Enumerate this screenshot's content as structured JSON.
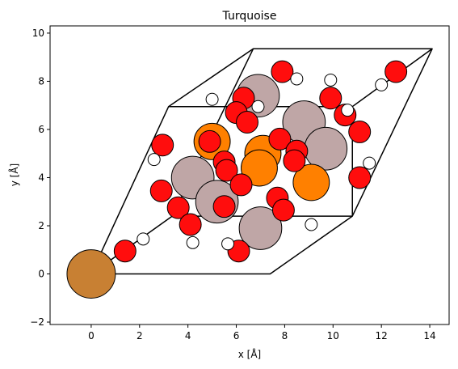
{
  "chart_data": {
    "type": "scatter",
    "title": "Turquoise",
    "xlabel": "x [Å]",
    "ylabel": "y [Å]",
    "xlim": [
      -1.7,
      14.8
    ],
    "ylim": [
      -2.1,
      10.3
    ],
    "xticks": [
      0,
      2,
      4,
      6,
      8,
      10,
      12,
      14
    ],
    "yticks": [
      -2,
      0,
      2,
      4,
      6,
      8,
      10
    ],
    "grid": false,
    "cell": {
      "vertices": [
        [
          0,
          0
        ],
        [
          7.4,
          0
        ],
        [
          10.8,
          2.4
        ],
        [
          14.1,
          9.35
        ],
        [
          6.7,
          9.35
        ],
        [
          3.2,
          6.95
        ]
      ],
      "inner": [
        [
          [
            3.2,
            6.95
          ],
          [
            10.8,
            6.95
          ]
        ],
        [
          [
            10.8,
            6.95
          ],
          [
            14.1,
            9.35
          ]
        ],
        [
          [
            10.8,
            6.95
          ],
          [
            10.8,
            2.4
          ]
        ],
        [
          [
            0,
            0
          ],
          [
            3.35,
            2.4
          ]
        ],
        [
          [
            3.35,
            2.4
          ],
          [
            10.8,
            2.4
          ]
        ],
        [
          [
            3.35,
            2.4
          ],
          [
            6.7,
            9.35
          ]
        ]
      ]
    },
    "series": [
      {
        "element": "Cu",
        "color": "#c88033",
        "radius_A": 1.0,
        "points": [
          [
            0,
            0
          ]
        ]
      },
      {
        "element": "Al",
        "color": "#bfa6a6",
        "radius_A": 0.88,
        "points": [
          [
            6.9,
            7.4
          ],
          [
            8.8,
            6.3
          ],
          [
            9.7,
            5.2
          ],
          [
            4.2,
            4.0
          ],
          [
            5.2,
            3.0
          ],
          [
            7.0,
            1.9
          ]
        ]
      },
      {
        "element": "P",
        "color": "#ff8000",
        "radius_A": 0.75,
        "points": [
          [
            5.0,
            5.5
          ],
          [
            7.1,
            5.0
          ],
          [
            6.95,
            4.4
          ],
          [
            9.1,
            3.8
          ]
        ]
      },
      {
        "element": "O",
        "color": "#ff0d0d",
        "radius_A": 0.45,
        "points": [
          [
            7.9,
            8.4
          ],
          [
            12.6,
            8.4
          ],
          [
            6.3,
            7.3
          ],
          [
            9.9,
            7.3
          ],
          [
            6.0,
            6.7
          ],
          [
            10.5,
            6.6
          ],
          [
            6.45,
            6.3
          ],
          [
            11.1,
            5.9
          ],
          [
            4.9,
            5.5
          ],
          [
            2.95,
            5.35
          ],
          [
            7.8,
            5.6
          ],
          [
            8.5,
            5.1
          ],
          [
            8.4,
            4.7
          ],
          [
            5.5,
            4.65
          ],
          [
            5.6,
            4.3
          ],
          [
            11.1,
            4.0
          ],
          [
            6.2,
            3.7
          ],
          [
            2.9,
            3.45
          ],
          [
            7.7,
            3.15
          ],
          [
            3.6,
            2.75
          ],
          [
            5.5,
            2.8
          ],
          [
            7.95,
            2.65
          ],
          [
            4.1,
            2.05
          ],
          [
            1.4,
            0.95
          ],
          [
            6.1,
            0.95
          ]
        ]
      },
      {
        "element": "H",
        "color": "#ffffff",
        "radius_A": 0.25,
        "points": [
          [
            8.5,
            8.1
          ],
          [
            9.9,
            8.05
          ],
          [
            12.0,
            7.85
          ],
          [
            5.0,
            7.25
          ],
          [
            6.9,
            6.95
          ],
          [
            10.6,
            6.8
          ],
          [
            2.6,
            4.75
          ],
          [
            11.5,
            4.6
          ],
          [
            2.15,
            1.45
          ],
          [
            9.1,
            2.05
          ],
          [
            4.2,
            1.3
          ],
          [
            5.65,
            1.25
          ]
        ]
      }
    ]
  }
}
